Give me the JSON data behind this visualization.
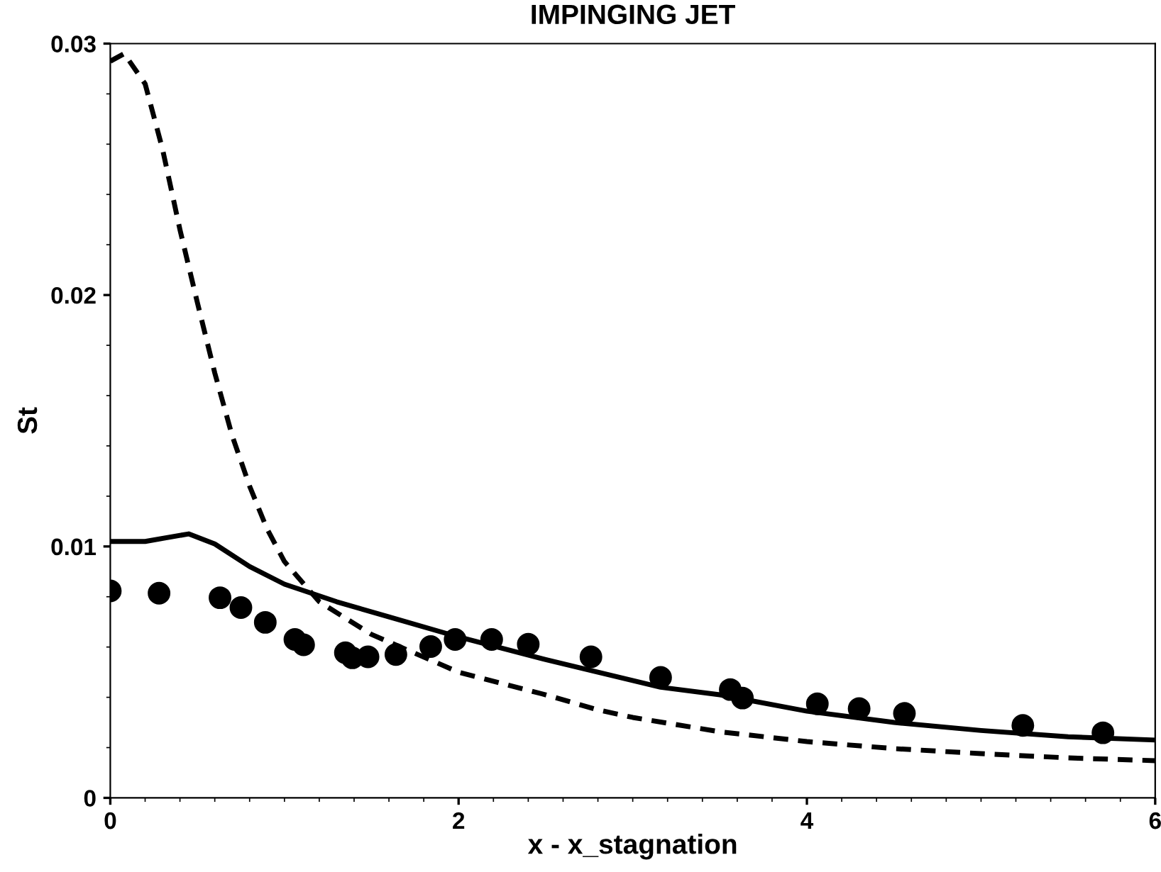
{
  "chart_data": {
    "type": "line",
    "title": "IMPINGING JET",
    "xlabel": "x - x_stagnation",
    "ylabel": "St",
    "xlim": [
      0,
      6
    ],
    "ylim": [
      0,
      0.03
    ],
    "xticks": [
      0,
      2,
      4,
      6
    ],
    "yticks": [
      0,
      0.01,
      0.02,
      0.03
    ],
    "grid": false,
    "legend": false,
    "series": [
      {
        "color": "#000000",
        "line_style": "solid",
        "marker": "none",
        "x": [
          0,
          0.2,
          0.45,
          0.6,
          0.8,
          1.0,
          1.3,
          1.6,
          2.0,
          2.5,
          2.8,
          3.16,
          3.5,
          4.0,
          4.5,
          5.0,
          5.5,
          6.0
        ],
        "values": [
          0.0102,
          0.0102,
          0.0105,
          0.0101,
          0.0092,
          0.0085,
          0.0078,
          0.0072,
          0.0064,
          0.0055,
          0.005,
          0.0044,
          0.0041,
          0.00345,
          0.003,
          0.00268,
          0.00243,
          0.0023
        ]
      },
      {
        "color": "#000000",
        "line_style": "dashed",
        "marker": "none",
        "x": [
          0,
          0.08,
          0.2,
          0.3,
          0.4,
          0.5,
          0.6,
          0.7,
          0.8,
          0.9,
          1.0,
          1.2,
          1.5,
          1.8,
          2.0,
          2.5,
          2.8,
          3.0,
          3.5,
          4.0,
          4.5,
          5.0,
          5.5,
          6.0
        ],
        "values": [
          0.0293,
          0.0296,
          0.0284,
          0.0258,
          0.0226,
          0.0197,
          0.0169,
          0.0144,
          0.0124,
          0.0107,
          0.0094,
          0.0078,
          0.0065,
          0.0056,
          0.005,
          0.0041,
          0.0035,
          0.0032,
          0.00263,
          0.00224,
          0.00196,
          0.00176,
          0.00159,
          0.00148
        ]
      },
      {
        "type": "scatter",
        "color": "#000000",
        "marker": "circle",
        "x": [
          0,
          0.28,
          0.63,
          0.75,
          0.89,
          1.06,
          1.11,
          1.35,
          1.39,
          1.48,
          1.64,
          1.84,
          1.98,
          2.19,
          2.4,
          2.76,
          3.16,
          3.56,
          3.63,
          4.06,
          4.3,
          4.56,
          5.24,
          5.7
        ],
        "values": [
          0.00823,
          0.00814,
          0.00796,
          0.00757,
          0.00698,
          0.0063,
          0.00609,
          0.00577,
          0.00557,
          0.00561,
          0.0057,
          0.00602,
          0.0063,
          0.0063,
          0.00611,
          0.00561,
          0.00479,
          0.00431,
          0.00397,
          0.00374,
          0.00355,
          0.00336,
          0.00288,
          0.00259
        ]
      }
    ]
  }
}
